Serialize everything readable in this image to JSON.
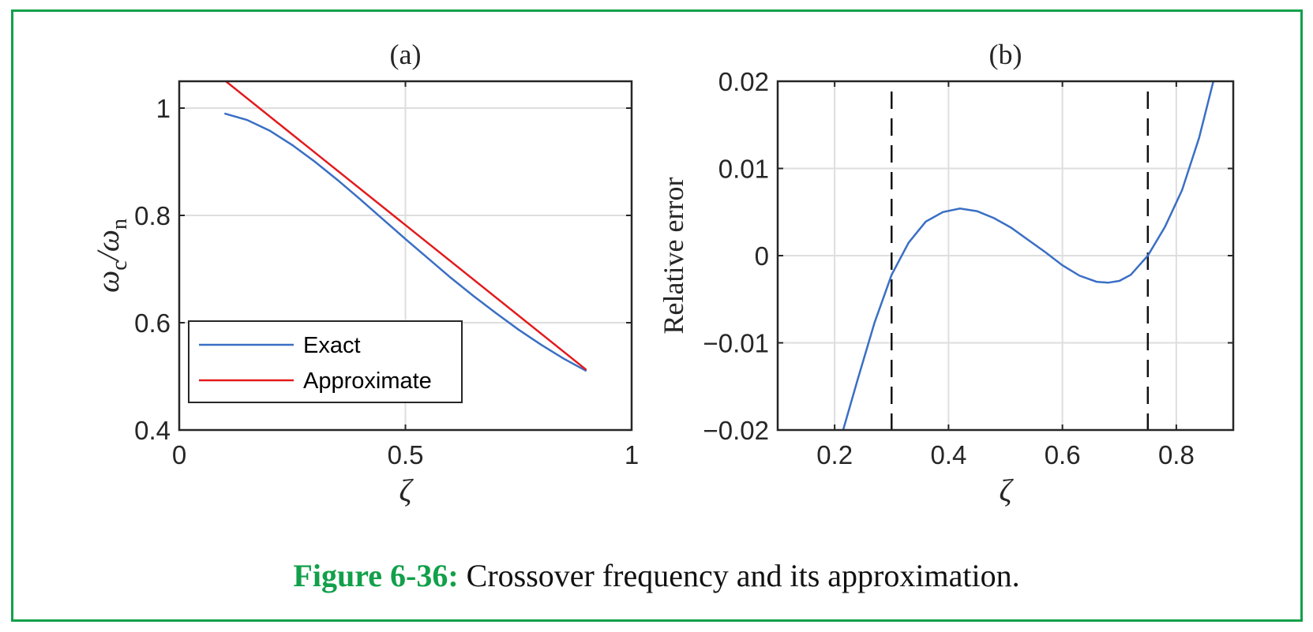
{
  "caption": {
    "label": "Figure 6-36:",
    "text": " Crossover frequency and its approximation."
  },
  "colors": {
    "frame": "#12a04a",
    "exact": "#3a6fc4",
    "approximate": "#e31a1c",
    "grid": "#dedede",
    "axis": "#262626"
  },
  "chart_data": [
    {
      "type": "line",
      "title": "(a)",
      "xlabel": "ζ",
      "ylabel_main": "ω",
      "ylabel_sub_num": "c",
      "ylabel_slash": "/ω",
      "ylabel_sub_den": "n",
      "xlim": [
        0,
        1
      ],
      "ylim": [
        0.4,
        1.05
      ],
      "xticks": [
        0,
        0.5,
        1
      ],
      "xtick_labels": [
        "0",
        "0.5",
        "1"
      ],
      "yticks": [
        0.4,
        0.6,
        0.8,
        1
      ],
      "ytick_labels": [
        "0.4",
        "0.6",
        "0.8",
        "1"
      ],
      "grid": true,
      "legend_position": "bottom-left",
      "series": [
        {
          "name": "Exact",
          "x": [
            0.1,
            0.15,
            0.2,
            0.25,
            0.3,
            0.35,
            0.4,
            0.45,
            0.5,
            0.55,
            0.6,
            0.65,
            0.7,
            0.75,
            0.8,
            0.85,
            0.9
          ],
          "y": [
            0.99,
            0.978,
            0.958,
            0.931,
            0.9,
            0.866,
            0.83,
            0.793,
            0.756,
            0.72,
            0.684,
            0.65,
            0.618,
            0.587,
            0.559,
            0.533,
            0.51
          ]
        },
        {
          "name": "Approximate",
          "x": [
            0.1,
            0.9
          ],
          "y": [
            1.052,
            0.512
          ]
        }
      ]
    },
    {
      "type": "line",
      "title": "(b)",
      "xlabel": "ζ",
      "ylabel": "Relative error",
      "xlim": [
        0.1,
        0.9
      ],
      "ylim": [
        -0.02,
        0.02
      ],
      "xticks": [
        0.2,
        0.4,
        0.6,
        0.8
      ],
      "xtick_labels": [
        "0.2",
        "0.4",
        "0.6",
        "0.8"
      ],
      "yticks": [
        -0.02,
        -0.01,
        0,
        0.01,
        0.02
      ],
      "ytick_labels": [
        "−0.02",
        "−0.01",
        "0",
        "0.01",
        "0.02"
      ],
      "grid": true,
      "vlines": [
        0.3,
        0.75
      ],
      "series": [
        {
          "x": [
            0.215,
            0.24,
            0.27,
            0.3,
            0.33,
            0.36,
            0.39,
            0.42,
            0.45,
            0.48,
            0.51,
            0.54,
            0.57,
            0.6,
            0.63,
            0.66,
            0.68,
            0.7,
            0.72,
            0.75,
            0.78,
            0.81,
            0.84,
            0.865
          ],
          "y": [
            -0.02,
            -0.0143,
            -0.0077,
            -0.0022,
            0.0015,
            0.0039,
            0.005,
            0.0054,
            0.0051,
            0.0043,
            0.0032,
            0.0018,
            0.0004,
            -0.0011,
            -0.0023,
            -0.003,
            -0.0031,
            -0.0029,
            -0.0022,
            0.0,
            0.0033,
            0.0075,
            0.0135,
            0.02
          ]
        }
      ]
    }
  ]
}
